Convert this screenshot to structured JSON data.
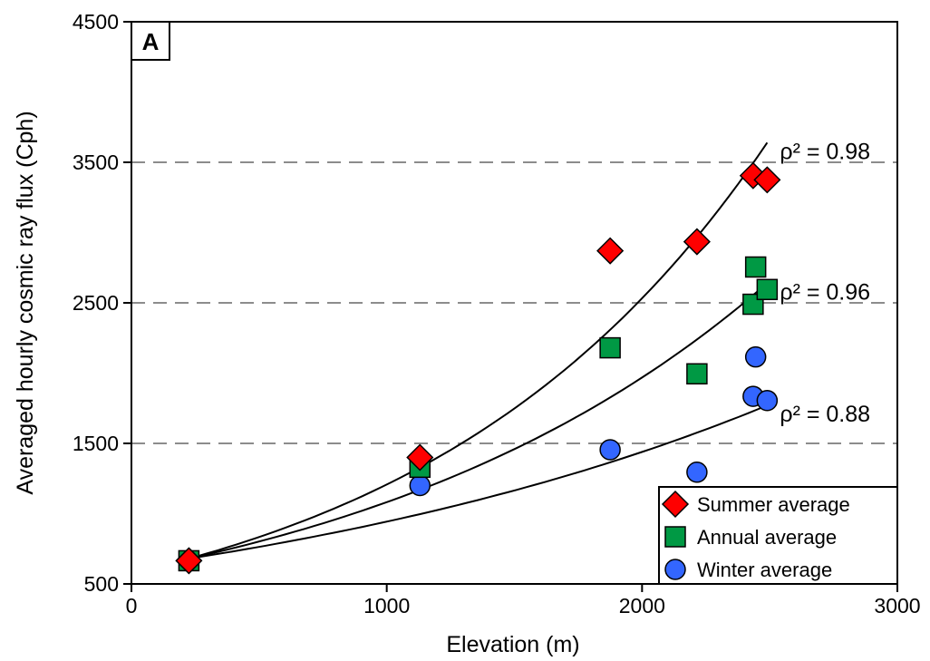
{
  "chart_data": {
    "type": "scatter",
    "panel_label": "A",
    "xlabel": "Elevation (m)",
    "ylabel": "Averaged hourly cosmic ray flux (Cph)",
    "xlim": [
      0,
      3000
    ],
    "ylim": [
      500,
      4500
    ],
    "x_ticks": [
      {
        "value": 0,
        "label": "0"
      },
      {
        "value": 1000,
        "label": "1000"
      },
      {
        "value": 2000,
        "label": "2000"
      },
      {
        "value": 3000,
        "label": "3000"
      }
    ],
    "y_ticks": [
      {
        "value": 500,
        "label": "500"
      },
      {
        "value": 1500,
        "label": "1500"
      },
      {
        "value": 2500,
        "label": "2500"
      },
      {
        "value": 3500,
        "label": "3500"
      },
      {
        "value": 4500,
        "label": "4500"
      }
    ],
    "grid": "dashed horizontal lines at 1500, 2500, 3500",
    "legend_position": "bottom-right",
    "series": [
      {
        "name": "Summer average",
        "marker": "diamond",
        "color": "#ff0000",
        "points": [
          {
            "x": 225,
            "y": 665
          },
          {
            "x": 1130,
            "y": 1400
          },
          {
            "x": 1875,
            "y": 2870
          },
          {
            "x": 2215,
            "y": 2935
          },
          {
            "x": 2435,
            "y": 3405
          },
          {
            "x": 2490,
            "y": 3375
          }
        ]
      },
      {
        "name": "Annual average",
        "marker": "square",
        "color": "#009944",
        "points": [
          {
            "x": 225,
            "y": 665
          },
          {
            "x": 1130,
            "y": 1330
          },
          {
            "x": 1875,
            "y": 2180
          },
          {
            "x": 2215,
            "y": 1995
          },
          {
            "x": 2435,
            "y": 2490
          },
          {
            "x": 2445,
            "y": 2755
          },
          {
            "x": 2490,
            "y": 2595
          }
        ]
      },
      {
        "name": "Winter average",
        "marker": "circle",
        "color": "#3366ff",
        "points": [
          {
            "x": 225,
            "y": 665
          },
          {
            "x": 1130,
            "y": 1200
          },
          {
            "x": 1875,
            "y": 1455
          },
          {
            "x": 2215,
            "y": 1295
          },
          {
            "x": 2435,
            "y": 1835
          },
          {
            "x": 2445,
            "y": 2115
          },
          {
            "x": 2490,
            "y": 1805
          }
        ]
      }
    ],
    "fits": [
      {
        "series": "Summer average",
        "label": "ρ² = 0.98",
        "x_range": [
          225,
          2490
        ],
        "y_range": [
          680,
          3640
        ]
      },
      {
        "series": "Annual average",
        "label": "ρ² = 0.96",
        "x_range": [
          225,
          2490
        ],
        "y_range": [
          680,
          2640
        ]
      },
      {
        "series": "Winter average",
        "label": "ρ² = 0.88",
        "x_range": [
          225,
          2490
        ],
        "y_range": [
          680,
          1770
        ]
      }
    ]
  }
}
